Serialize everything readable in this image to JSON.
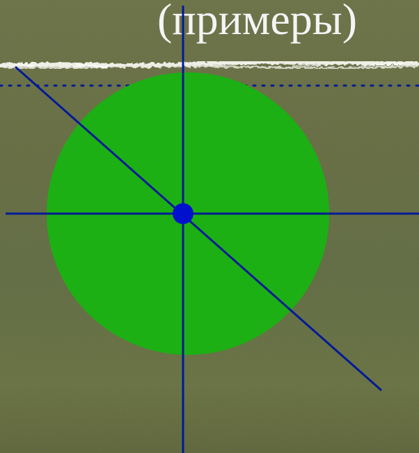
{
  "slide": {
    "title_fragment": "(примеры)"
  },
  "colors": {
    "background": "#656b40",
    "circle_fill": "#1cb014",
    "line_color": "#001a96",
    "center_dot": "#0010cc",
    "title_text": "#f4f4f4",
    "chalk_stroke": "#efefe6"
  },
  "icons": {
    "circle": "circle-shape",
    "center": "center-point-icon"
  }
}
